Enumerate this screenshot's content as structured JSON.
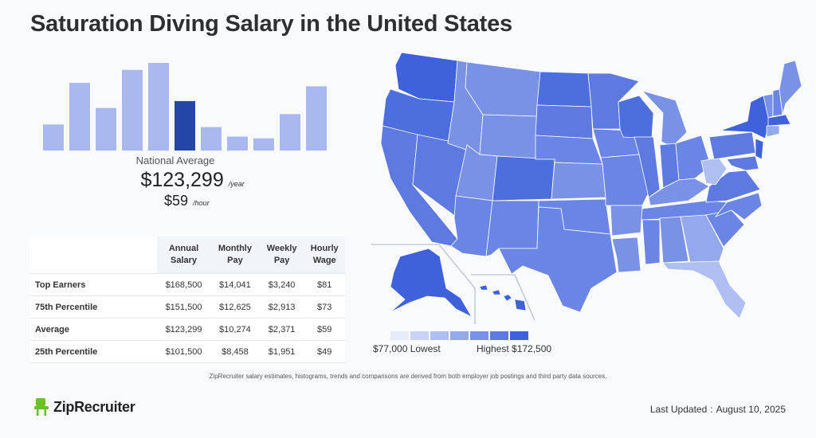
{
  "title": "Saturation Diving Salary in the United States",
  "histogram": {
    "bars": [
      {
        "value": 30,
        "highlight": false
      },
      {
        "value": 78,
        "highlight": false
      },
      {
        "value": 49,
        "highlight": false
      },
      {
        "value": 93,
        "highlight": false
      },
      {
        "value": 101,
        "highlight": false
      },
      {
        "value": 57,
        "highlight": true
      },
      {
        "value": 27,
        "highlight": false
      },
      {
        "value": 16,
        "highlight": false
      },
      {
        "value": 14,
        "highlight": false
      },
      {
        "value": 42,
        "highlight": false
      },
      {
        "value": 74,
        "highlight": false
      }
    ],
    "color": "#a9b9f0",
    "highlight_color": "#2446a8"
  },
  "national": {
    "label": "National Average",
    "annual": "$123,299",
    "annual_unit": "/year",
    "hourly": "$59",
    "hourly_unit": "/hour"
  },
  "table": {
    "headers": [
      [
        "Annual",
        "Salary"
      ],
      [
        "Monthly",
        "Pay"
      ],
      [
        "Weekly",
        "Pay"
      ],
      [
        "Hourly",
        "Wage"
      ]
    ],
    "rows": [
      {
        "label": "Top Earners",
        "values": [
          "$168,500",
          "$14,041",
          "$3,240",
          "$81"
        ]
      },
      {
        "label": "75th Percentile",
        "values": [
          "$151,500",
          "$12,625",
          "$2,913",
          "$73"
        ]
      },
      {
        "label": "Average",
        "values": [
          "$123,299",
          "$10,274",
          "$2,371",
          "$59"
        ]
      },
      {
        "label": "25th Percentile",
        "values": [
          "$101,500",
          "$8,458",
          "$1,951",
          "$49"
        ]
      }
    ]
  },
  "map_legend": {
    "low_label": "$77,000 Lowest",
    "high_label": "Highest $172,500",
    "colors": [
      "#e6ebfa",
      "#c9d3f5",
      "#b0bff1",
      "#94a8ec",
      "#7a92e6",
      "#5e7ae0",
      "#3f61da"
    ]
  },
  "disclaimer": "ZipRecruiter salary estimates, histograms, trends and comparisons are derived from both employer job postings and third party data sources.",
  "logo_text": "ZipRecruiter",
  "last_updated_label": "Last Updated",
  "last_updated_sep": ":",
  "last_updated_date": "August 10, 2025"
}
